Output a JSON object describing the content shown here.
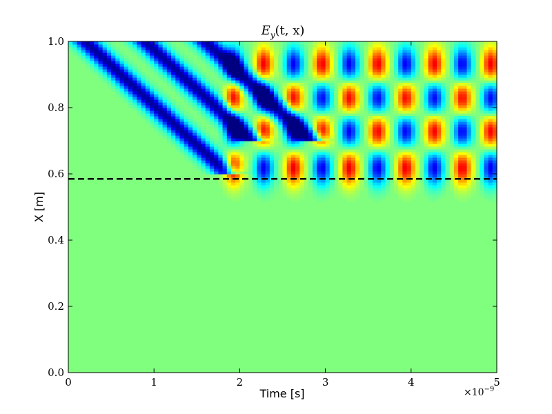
{
  "chart_data": {
    "type": "heatmap",
    "title": "E_y(t, x)",
    "title_parts": {
      "base": "E",
      "sub": "y",
      "args": "(t, x)"
    },
    "xlabel": "Time [s]",
    "ylabel": "X [m]",
    "x_offset_label": {
      "base": "×10",
      "exp": "−9"
    },
    "xlim": [
      0,
      5
    ],
    "ylim": [
      0.0,
      1.0
    ],
    "x_ticks": [
      {
        "value": 0,
        "label": "0"
      },
      {
        "value": 1,
        "label": "1"
      },
      {
        "value": 2,
        "label": "2"
      },
      {
        "value": 3,
        "label": "3"
      },
      {
        "value": 4,
        "label": "4"
      },
      {
        "value": 5,
        "label": "5"
      }
    ],
    "y_ticks": [
      {
        "value": 0.0,
        "label": "0.0"
      },
      {
        "value": 0.2,
        "label": "0.2"
      },
      {
        "value": 0.4,
        "label": "0.4"
      },
      {
        "value": 0.6,
        "label": "0.6"
      },
      {
        "value": 0.8,
        "label": "0.8"
      },
      {
        "value": 1.0,
        "label": "1.0"
      }
    ],
    "colormap": "jet",
    "background_color": "#80ff7f",
    "reference_line": {
      "y": 0.585,
      "style": "dashed",
      "color": "#000000"
    },
    "incident_wave": {
      "stripe_count": 3,
      "start_times": [
        0.2,
        0.9,
        1.6
      ],
      "speed_m_per_unit": 0.24
    },
    "standing_wave": {
      "column_times": [
        1.9,
        2.25,
        2.6,
        2.93,
        3.25,
        3.58,
        3.91,
        4.24,
        4.57,
        4.9
      ],
      "column_signs": [
        1,
        -1,
        1,
        -1,
        1,
        -1,
        1,
        -1,
        1,
        -1
      ],
      "row_positions": [
        0.62,
        0.73,
        0.83,
        0.93
      ],
      "row_signs": [
        1,
        -1,
        1,
        -1
      ]
    },
    "grid": false,
    "legend": "none"
  }
}
